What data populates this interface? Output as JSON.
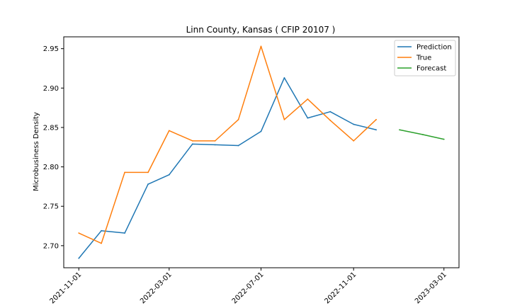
{
  "chart_data": {
    "type": "line",
    "title": "Linn County, Kansas ( CFIP 20107 )",
    "xlabel": "",
    "ylabel": "Microbusiness Density",
    "xlim": [
      "2021-10-12",
      "2023-03-21"
    ],
    "ylim": [
      2.672,
      2.965
    ],
    "x_ticks": [
      "2021-11-01",
      "2022-03-01",
      "2022-07-01",
      "2022-11-01",
      "2023-03-01"
    ],
    "y_ticks": [
      2.7,
      2.75,
      2.8,
      2.85,
      2.9,
      2.95
    ],
    "y_tick_labels": [
      "2.70",
      "2.75",
      "2.80",
      "2.85",
      "2.90",
      "2.95"
    ],
    "grid": false,
    "legend_position": "top-right",
    "series": [
      {
        "name": "Prediction",
        "color": "#1f77b4",
        "x": [
          "2021-11-01",
          "2021-12-01",
          "2022-01-01",
          "2022-02-01",
          "2022-03-01",
          "2022-04-01",
          "2022-05-01",
          "2022-06-01",
          "2022-07-01",
          "2022-08-01",
          "2022-09-01",
          "2022-10-01",
          "2022-11-01",
          "2022-12-01"
        ],
        "y": [
          2.684,
          2.719,
          2.716,
          2.778,
          2.79,
          2.829,
          2.828,
          2.827,
          2.845,
          2.913,
          2.862,
          2.87,
          2.854,
          2.847
        ]
      },
      {
        "name": "True",
        "color": "#ff7f0e",
        "x": [
          "2021-11-01",
          "2021-12-01",
          "2022-01-01",
          "2022-02-01",
          "2022-03-01",
          "2022-04-01",
          "2022-05-01",
          "2022-06-01",
          "2022-07-01",
          "2022-08-01",
          "2022-09-01",
          "2022-10-01",
          "2022-11-01",
          "2022-12-01"
        ],
        "y": [
          2.716,
          2.703,
          2.793,
          2.793,
          2.846,
          2.833,
          2.833,
          2.86,
          2.953,
          2.86,
          2.886,
          2.859,
          2.833,
          2.86
        ]
      },
      {
        "name": "Forecast",
        "color": "#2ca02c",
        "x": [
          "2023-01-01",
          "2023-02-01",
          "2023-03-01"
        ],
        "y": [
          2.847,
          2.841,
          2.835
        ]
      }
    ]
  }
}
